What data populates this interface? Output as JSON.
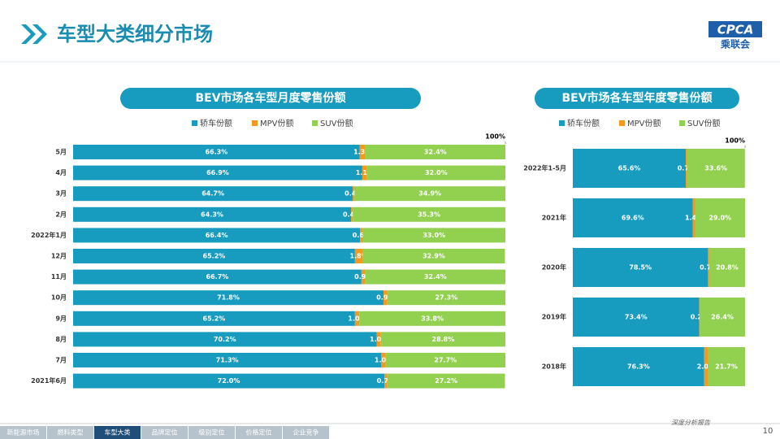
{
  "header": {
    "title": "车型大类细分市场",
    "logo": "CPCA",
    "logo_sub": "乘联会"
  },
  "footer": {
    "tabs": [
      "新能源市场",
      "燃料类型",
      "车型大类",
      "品牌定位",
      "级别定位",
      "价格定位",
      "企业竞争"
    ],
    "active": 2,
    "report": "深度分析报告",
    "page": "10"
  },
  "chart_data": [
    {
      "type": "stacked_barh",
      "title": "BEV市场各车型月度零售份额",
      "categories": [
        "5月",
        "4月",
        "3月",
        "2月",
        "2022年1月",
        "12月",
        "11月",
        "10月",
        "9月",
        "8月",
        "7月",
        "2021年6月"
      ],
      "xlim": [
        0,
        100
      ],
      "xticks": [
        {
          "value": 100,
          "label": "100%"
        }
      ],
      "series": [
        {
          "name": "轿车份额",
          "color": "#179cbf",
          "values": [
            66.3,
            66.9,
            64.7,
            64.3,
            66.4,
            65.2,
            66.7,
            71.8,
            65.2,
            70.2,
            71.3,
            72.0
          ],
          "value_labels": [
            "66.3%",
            "66.9%",
            "64.7%",
            "64.3%",
            "66.4%",
            "65.2%",
            "66.7%",
            "71.8%",
            "65.2%",
            "70.2%",
            "71.3%",
            "72.0%"
          ]
        },
        {
          "name": "MPV份额",
          "color": "#f39a1e",
          "values": [
            1.3,
            1.1,
            0.4,
            0.4,
            0.6,
            1.8,
            0.9,
            0.9,
            1.0,
            1.0,
            1.0,
            0.7
          ],
          "value_labels": [
            "1.3%",
            "1.1%",
            "0.4%",
            "0.4%",
            "0.6%",
            "1.8%",
            "0.9%",
            "0.9%",
            "1.0%",
            "1.0%",
            "1.0%",
            "0.7%"
          ]
        },
        {
          "name": "SUV份额",
          "color": "#92d050",
          "values": [
            32.4,
            32.0,
            34.9,
            35.3,
            33.0,
            32.9,
            32.4,
            27.3,
            33.8,
            28.8,
            27.7,
            27.2
          ],
          "value_labels": [
            "32.4%",
            "32.0%",
            "34.9%",
            "35.3%",
            "33.0%",
            "32.9%",
            "32.4%",
            "27.3%",
            "33.8%",
            "28.8%",
            "27.7%",
            "27.2%"
          ]
        }
      ]
    },
    {
      "type": "stacked_barh",
      "title": "BEV市场各车型年度零售份额",
      "categories": [
        "2022年1-5月",
        "2021年",
        "2020年",
        "2019年",
        "2018年"
      ],
      "xlim": [
        0,
        100
      ],
      "xticks": [
        {
          "value": 100,
          "label": "100%"
        }
      ],
      "series": [
        {
          "name": "轿车份额",
          "color": "#179cbf",
          "values": [
            65.6,
            69.6,
            78.5,
            73.4,
            76.3
          ],
          "value_labels": [
            "65.6%",
            "69.6%",
            "78.5%",
            "73.4%",
            "76.3%"
          ]
        },
        {
          "name": "MPV份额",
          "color": "#f39a1e",
          "values": [
            0.7,
            1.4,
            0.7,
            0.2,
            2.0
          ],
          "value_labels": [
            "0.7%",
            "1.4%",
            "0.7%",
            "0.2%",
            "2.0%"
          ]
        },
        {
          "name": "SUV份额",
          "color": "#92d050",
          "values": [
            33.6,
            29.0,
            20.8,
            26.4,
            21.7
          ],
          "value_labels": [
            "33.6%",
            "29.0%",
            "20.8%",
            "26.4%",
            "21.7%"
          ]
        }
      ]
    }
  ]
}
